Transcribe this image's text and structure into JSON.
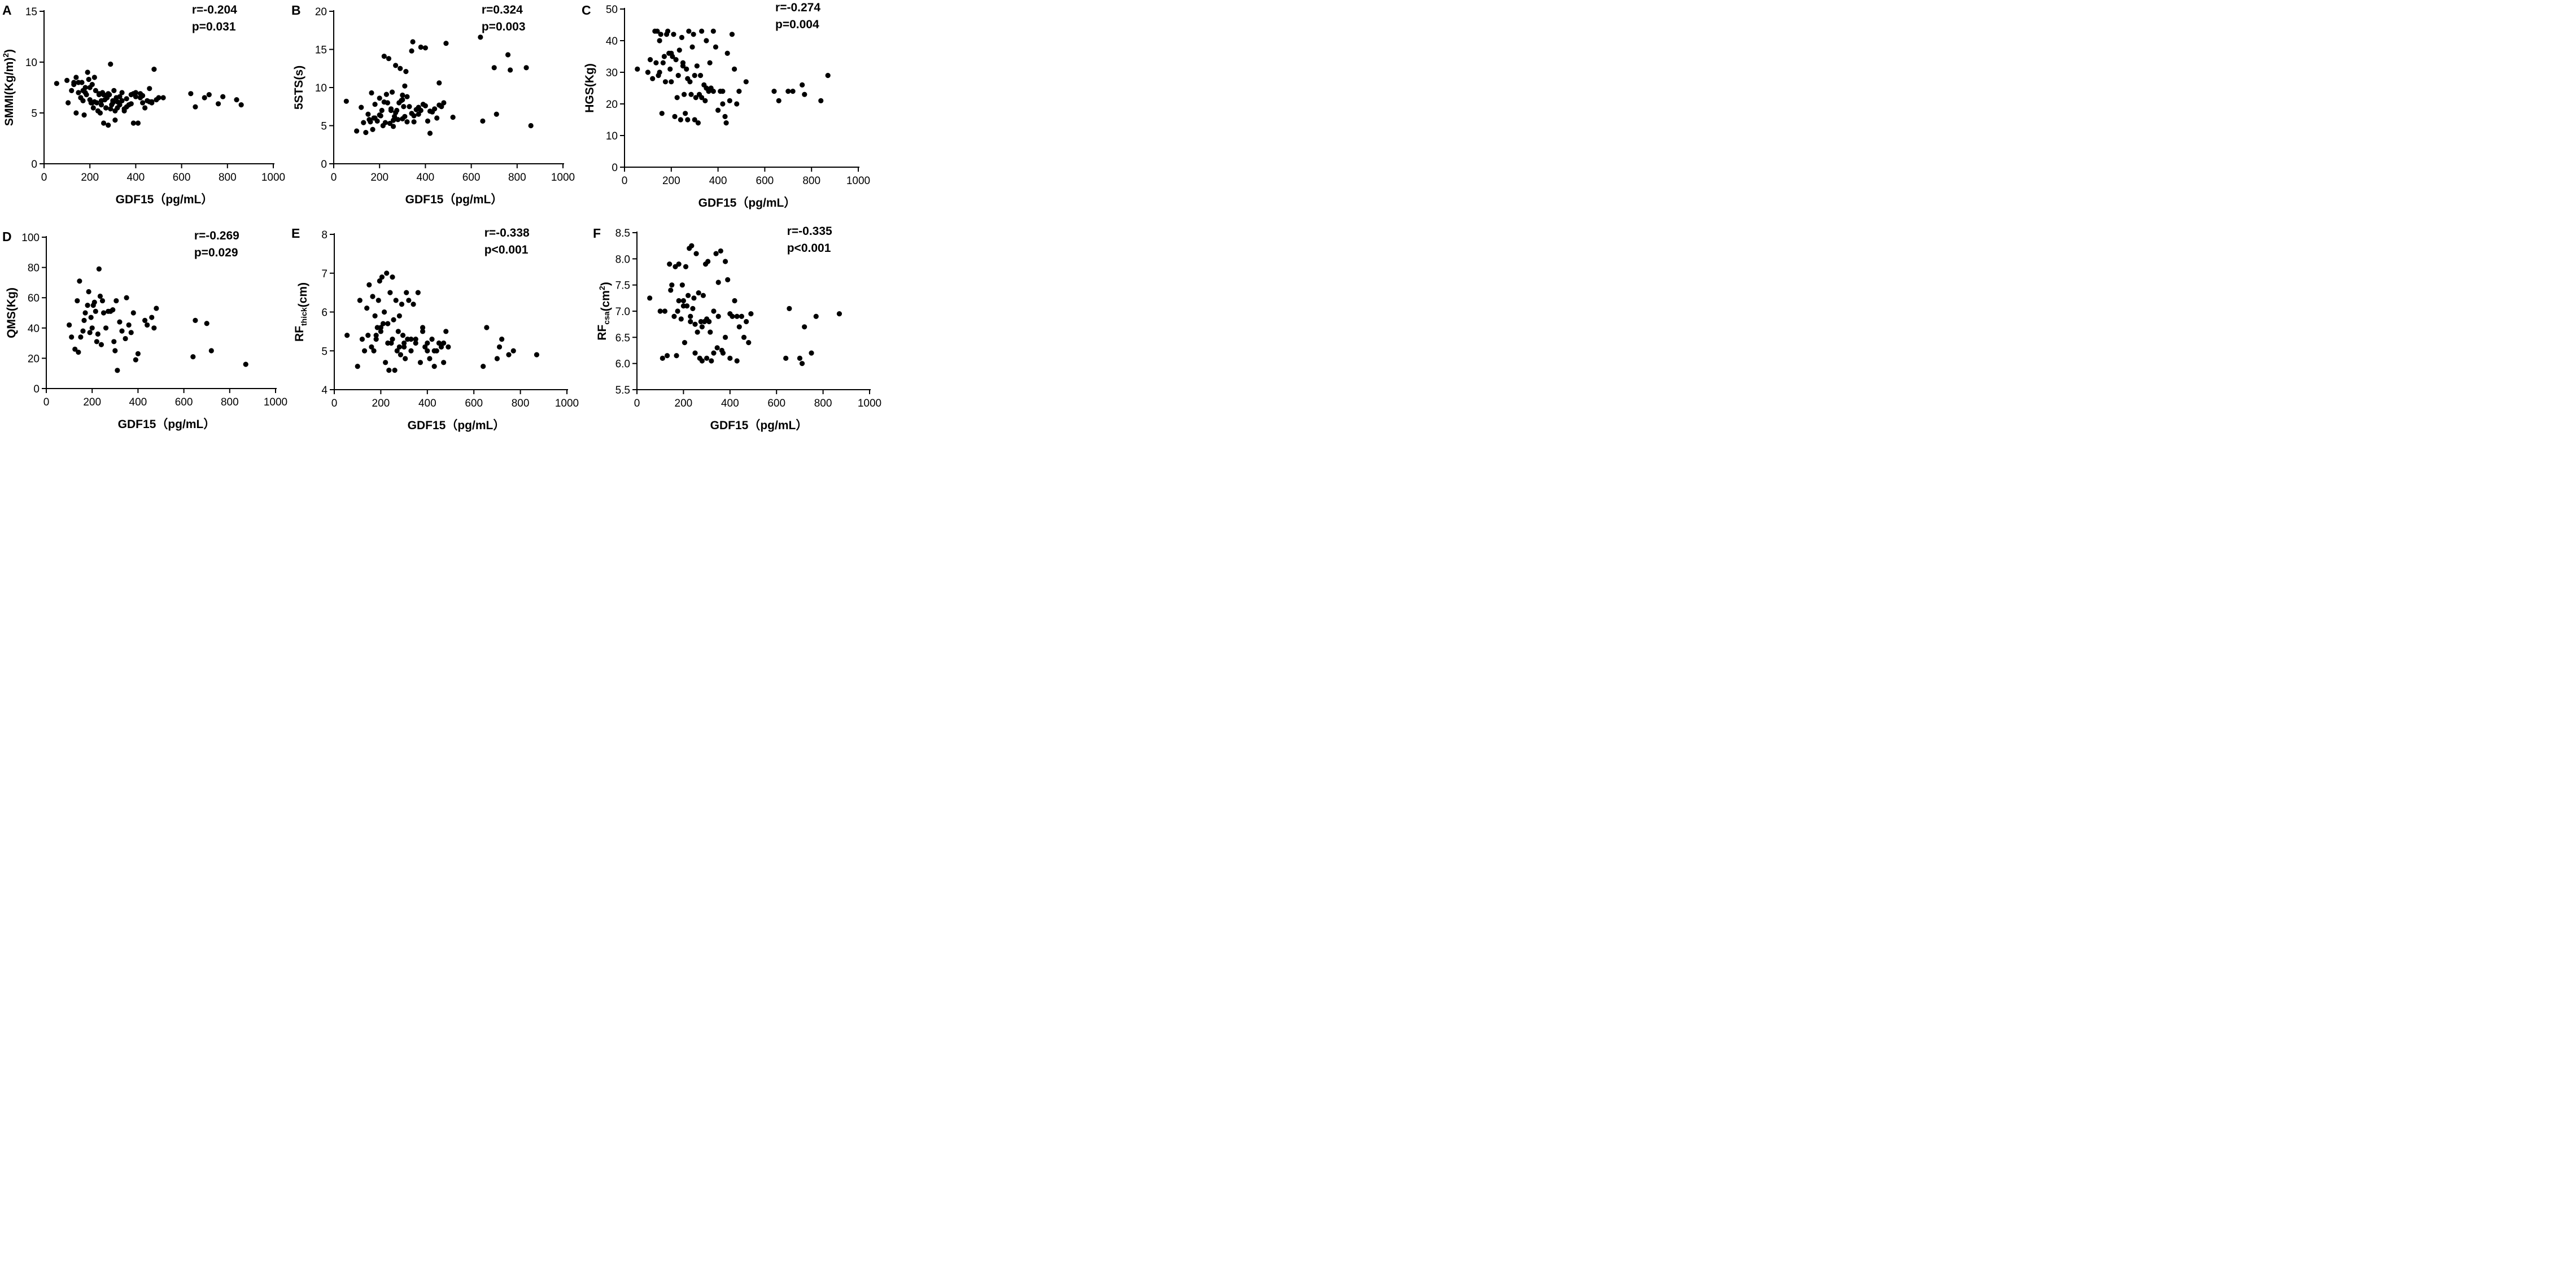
{
  "colors": {
    "points": "#000000",
    "axes": "#000000",
    "background": "#ffffff"
  },
  "chart_data": [
    {
      "panel": "A",
      "type": "scatter",
      "xlabel": "GDF15（pg/mL）",
      "ylabel_main": "SMMI(Kg/m",
      "ylabel_sup": "2",
      "ylabel_sub": "",
      "ylabel_tail": ")",
      "stat_r": "r=-0.204",
      "stat_p": "p=0.031",
      "xlim": [
        0,
        1000
      ],
      "ylim": [
        0,
        15
      ],
      "xticks": [
        0,
        200,
        400,
        600,
        800,
        1000
      ],
      "yticks": [
        0,
        5,
        10,
        15
      ],
      "x": [
        55,
        100,
        105,
        120,
        130,
        140,
        140,
        150,
        160,
        165,
        170,
        175,
        180,
        185,
        190,
        195,
        200,
        205,
        210,
        215,
        220,
        225,
        230,
        235,
        240,
        245,
        250,
        255,
        260,
        265,
        270,
        275,
        280,
        285,
        290,
        295,
        300,
        305,
        310,
        315,
        320,
        330,
        340,
        350,
        360,
        370,
        380,
        390,
        400,
        410,
        420,
        430,
        440,
        450,
        460,
        470,
        480,
        490,
        500,
        520,
        160,
        200,
        240,
        270,
        300,
        330,
        360,
        150,
        180,
        210,
        250,
        280,
        310,
        340,
        380,
        400,
        420,
        460,
        130,
        170,
        220,
        260,
        290,
        320,
        350,
        390,
        430,
        470,
        640,
        660,
        700,
        720,
        760,
        780,
        840,
        860
      ],
      "y": [
        7.9,
        8.2,
        6.0,
        7.2,
        7.8,
        5.0,
        8.5,
        7.0,
        6.5,
        8.0,
        7.2,
        4.8,
        7.5,
        6.8,
        9.0,
        8.3,
        6.3,
        6.0,
        7.8,
        5.5,
        8.5,
        7.2,
        6.0,
        5.2,
        6.9,
        5.0,
        6.2,
        7.0,
        4.0,
        6.3,
        5.5,
        6.5,
        3.8,
        6.8,
        9.8,
        5.8,
        6.0,
        7.2,
        4.3,
        6.5,
        5.5,
        5.8,
        7.0,
        5.2,
        6.4,
        5.8,
        6.8,
        4.0,
        7.0,
        4.0,
        6.5,
        6.0,
        5.5,
        6.2,
        7.4,
        6.0,
        9.3,
        6.3,
        6.5,
        6.5,
        6.5,
        7.5,
        6.8,
        5.5,
        6.2,
        6.6,
        5.6,
        8.0,
        7.0,
        6.0,
        5.8,
        6.9,
        5.2,
        6.2,
        5.9,
        6.6,
        6.9,
        6.1,
        8.0,
        6.2,
        6.1,
        6.8,
        5.4,
        6.1,
        5.4,
        6.9,
        6.7,
        6.1,
        6.9,
        5.6,
        6.5,
        6.8,
        5.9,
        6.6,
        6.3,
        5.8
      ]
    },
    {
      "panel": "B",
      "type": "scatter",
      "xlabel": "GDF15（pg/mL）",
      "ylabel_main": "5STS(s)",
      "ylabel_sup": "",
      "ylabel_sub": "",
      "ylabel_tail": "",
      "stat_r": "r=0.324",
      "stat_p": "p=0.003",
      "xlim": [
        0,
        1000
      ],
      "ylim": [
        0,
        20
      ],
      "xticks": [
        0,
        200,
        400,
        600,
        800,
        1000
      ],
      "yticks": [
        0,
        5,
        10,
        15,
        20
      ],
      "x": [
        55,
        100,
        120,
        130,
        140,
        150,
        155,
        160,
        165,
        170,
        175,
        180,
        190,
        200,
        205,
        210,
        215,
        220,
        225,
        230,
        235,
        240,
        245,
        250,
        255,
        260,
        265,
        270,
        275,
        280,
        285,
        290,
        295,
        300,
        305,
        310,
        315,
        320,
        330,
        340,
        345,
        350,
        360,
        370,
        380,
        390,
        400,
        410,
        420,
        430,
        440,
        450,
        460,
        470,
        480,
        490,
        520,
        640,
        650,
        700,
        710,
        760,
        770,
        840,
        860,
        200,
        250,
        300,
        350,
        400,
        180,
        220,
        270,
        320,
        370,
        420,
        460,
        300,
        340,
        380,
        260,
        310
      ],
      "y": [
        8.2,
        4.3,
        7.4,
        5.4,
        4.1,
        6.5,
        5.8,
        5.5,
        9.3,
        4.5,
        6.0,
        7.8,
        5.6,
        8.6,
        6.3,
        7.0,
        5.0,
        14.1,
        5.4,
        9.1,
        8.0,
        13.8,
        5.3,
        7.2,
        9.4,
        4.9,
        6.2,
        12.9,
        7.0,
        5.8,
        8.0,
        12.5,
        8.3,
        9.0,
        7.5,
        10.2,
        12.1,
        5.5,
        7.5,
        14.8,
        16.0,
        5.5,
        7.1,
        6.5,
        15.3,
        7.8,
        15.2,
        5.6,
        4.0,
        6.8,
        7.2,
        6.0,
        10.6,
        7.5,
        8.0,
        15.8,
        6.1,
        16.6,
        5.6,
        12.6,
        6.5,
        14.3,
        12.3,
        12.6,
        5.0,
        6.4,
        7.0,
        8.4,
        6.3,
        7.6,
        6.0,
        8.1,
        6.7,
        8.8,
        7.4,
        6.9,
        7.7,
        5.9,
        6.6,
        7.0,
        5.7,
        6.2
      ]
    },
    {
      "panel": "C",
      "type": "scatter",
      "xlabel": "GDF15（pg/mL）",
      "ylabel_main": "HGS(Kg)",
      "ylabel_sup": "",
      "ylabel_sub": "",
      "ylabel_tail": "",
      "stat_r": "r=-0.274",
      "stat_p": "p=0.004",
      "xlim": [
        0,
        1000
      ],
      "ylim": [
        0,
        50
      ],
      "xticks": [
        0,
        200,
        400,
        600,
        800,
        1000
      ],
      "yticks": [
        0,
        10,
        20,
        30,
        40,
        50
      ],
      "x": [
        55,
        100,
        110,
        120,
        130,
        135,
        140,
        145,
        150,
        155,
        160,
        165,
        170,
        175,
        180,
        185,
        190,
        195,
        200,
        205,
        210,
        215,
        220,
        225,
        230,
        235,
        240,
        245,
        250,
        255,
        260,
        265,
        270,
        275,
        280,
        285,
        290,
        295,
        300,
        305,
        310,
        315,
        320,
        325,
        330,
        340,
        345,
        350,
        360,
        365,
        370,
        380,
        390,
        400,
        410,
        420,
        430,
        435,
        440,
        450,
        460,
        470,
        480,
        490,
        520,
        640,
        660,
        700,
        720,
        760,
        770,
        840,
        870,
        200,
        250,
        300,
        350,
        150,
        270,
        330,
        380,
        420
      ],
      "y": [
        31,
        30,
        34,
        28,
        43,
        33,
        43,
        29,
        40,
        42,
        17,
        33,
        35,
        27,
        42,
        43,
        36,
        31,
        27,
        35,
        42,
        16,
        34,
        22,
        29,
        37,
        15,
        41,
        33,
        23,
        17,
        31,
        15,
        43,
        27,
        23,
        38,
        42,
        15,
        22,
        32,
        14,
        23,
        29,
        43,
        26,
        21,
        40,
        24,
        33,
        25,
        43,
        38,
        18,
        24,
        24,
        16,
        14,
        36,
        21,
        42,
        31,
        20,
        24,
        27,
        24,
        21,
        24,
        24,
        26,
        23,
        21,
        29,
        36,
        32,
        29,
        25,
        30,
        28,
        22,
        24,
        20
      ]
    },
    {
      "panel": "D",
      "type": "scatter",
      "xlabel": "GDF15（pg/mL）",
      "ylabel_main": "QMS(Kg)",
      "ylabel_sup": "",
      "ylabel_sub": "",
      "ylabel_tail": "",
      "stat_r": "r=-0.269",
      "stat_p": "p=0.029",
      "xlim": [
        0,
        1000
      ],
      "ylim": [
        0,
        100
      ],
      "xticks": [
        0,
        200,
        400,
        600,
        800,
        1000
      ],
      "yticks": [
        0,
        20,
        40,
        60,
        80,
        100
      ],
      "x": [
        100,
        110,
        125,
        135,
        140,
        145,
        150,
        160,
        165,
        170,
        180,
        185,
        190,
        195,
        200,
        205,
        210,
        215,
        220,
        225,
        230,
        235,
        240,
        245,
        250,
        260,
        270,
        280,
        290,
        295,
        300,
        305,
        310,
        320,
        330,
        345,
        350,
        360,
        370,
        380,
        390,
        400,
        430,
        440,
        460,
        470,
        480,
        640,
        650,
        700,
        720,
        870
      ],
      "y": [
        42,
        34,
        26,
        58,
        24,
        71,
        34,
        38,
        45,
        50,
        55,
        64,
        37,
        47,
        40,
        55,
        57,
        51,
        31,
        36,
        79,
        61,
        29,
        58,
        50,
        40,
        51,
        51,
        52,
        31,
        25,
        58,
        12,
        44,
        38,
        33,
        60,
        42,
        37,
        50,
        19,
        23,
        45,
        42,
        47,
        40,
        53,
        21,
        45,
        43,
        25,
        16
      ]
    },
    {
      "panel": "E",
      "type": "scatter",
      "xlabel": "GDF15（pg/mL）",
      "ylabel_main": "RF",
      "ylabel_sup": "",
      "ylabel_sub": "thick",
      "ylabel_tail": "(cm)",
      "stat_r": "r=-0.338",
      "stat_p": "p<0.001",
      "xlim": [
        0,
        1000
      ],
      "ylim": [
        4,
        8
      ],
      "xticks": [
        0,
        200,
        400,
        600,
        800,
        1000
      ],
      "yticks": [
        4,
        5,
        6,
        7,
        8
      ],
      "x": [
        55,
        100,
        110,
        120,
        130,
        140,
        145,
        150,
        160,
        165,
        170,
        175,
        180,
        185,
        190,
        195,
        200,
        205,
        210,
        215,
        220,
        225,
        230,
        235,
        240,
        245,
        250,
        255,
        260,
        265,
        270,
        275,
        280,
        285,
        290,
        295,
        300,
        305,
        310,
        315,
        320,
        330,
        340,
        350,
        360,
        370,
        380,
        390,
        400,
        410,
        420,
        430,
        440,
        450,
        460,
        470,
        480,
        490,
        640,
        655,
        700,
        710,
        720,
        750,
        770,
        870,
        200,
        250,
        300,
        350,
        400,
        180,
        230,
        280,
        330,
        380,
        430,
        470
      ],
      "y": [
        5.4,
        4.6,
        6.3,
        5.3,
        5.0,
        6.1,
        5.4,
        6.7,
        5.1,
        6.4,
        5.0,
        5.9,
        5.3,
        5.6,
        6.3,
        6.8,
        5.5,
        6.9,
        5.7,
        6.0,
        4.7,
        7.0,
        5.2,
        4.5,
        6.5,
        5.2,
        6.9,
        5.8,
        4.5,
        6.3,
        5.0,
        5.5,
        5.9,
        4.9,
        6.2,
        5.4,
        5.2,
        4.8,
        6.5,
        5.3,
        6.3,
        5.0,
        6.2,
        5.3,
        6.5,
        4.7,
        5.6,
        5.1,
        5.2,
        4.8,
        5.3,
        4.6,
        5.0,
        5.2,
        5.1,
        4.7,
        5.5,
        5.1,
        4.6,
        5.6,
        4.8,
        5.1,
        5.3,
        4.9,
        5.0,
        4.9,
        5.6,
        5.3,
        5.1,
        5.2,
        5.0,
        5.4,
        5.7,
        5.1,
        5.3,
        5.5,
        5.0,
        5.2
      ]
    },
    {
      "panel": "F",
      "type": "scatter",
      "xlabel": "GDF15（pg/mL）",
      "ylabel_main": "RF",
      "ylabel_sup": "2",
      "ylabel_sub": "csa",
      "ylabel_tail": "(cm",
      "stat_r": "r=-0.335",
      "stat_p": "p<0.001",
      "xlim": [
        0,
        1000
      ],
      "ylim": [
        5.5,
        8.5
      ],
      "xticks": [
        0,
        200,
        400,
        600,
        800,
        1000
      ],
      "yticks": [
        5.5,
        6.0,
        6.5,
        7.0,
        7.5,
        8.0,
        8.5
      ],
      "x": [
        55,
        100,
        110,
        120,
        130,
        140,
        145,
        150,
        160,
        165,
        170,
        175,
        180,
        190,
        195,
        200,
        205,
        210,
        215,
        220,
        225,
        230,
        235,
        240,
        245,
        250,
        255,
        260,
        265,
        270,
        275,
        280,
        285,
        290,
        295,
        300,
        305,
        310,
        315,
        320,
        330,
        340,
        345,
        350,
        360,
        365,
        370,
        380,
        390,
        400,
        410,
        420,
        430,
        440,
        450,
        460,
        470,
        480,
        490,
        640,
        655,
        700,
        710,
        720,
        750,
        770,
        870,
        200,
        250,
        300,
        350,
        400,
        180,
        230,
        280,
        330,
        380,
        430
      ],
      "y": [
        7.25,
        7.0,
        6.1,
        7.0,
        6.15,
        7.9,
        7.4,
        7.5,
        6.9,
        7.85,
        6.15,
        7.0,
        7.9,
        6.85,
        7.5,
        7.2,
        6.4,
        7.85,
        7.1,
        7.3,
        8.2,
        6.8,
        8.25,
        7.05,
        7.25,
        6.2,
        8.1,
        6.6,
        7.35,
        6.1,
        6.8,
        6.05,
        7.3,
        6.8,
        7.9,
        6.1,
        7.95,
        6.8,
        6.6,
        6.05,
        6.2,
        8.1,
        6.3,
        7.55,
        8.15,
        6.25,
        6.2,
        7.95,
        7.6,
        6.1,
        6.9,
        7.2,
        6.05,
        6.7,
        6.9,
        6.5,
        6.8,
        6.4,
        6.95,
        6.1,
        7.05,
        6.1,
        6.0,
        6.7,
        6.2,
        6.9,
        6.95,
        7.1,
        6.75,
        6.85,
        6.9,
        6.95,
        7.2,
        6.9,
        6.7,
        7.0,
        6.5,
        6.9
      ]
    }
  ]
}
